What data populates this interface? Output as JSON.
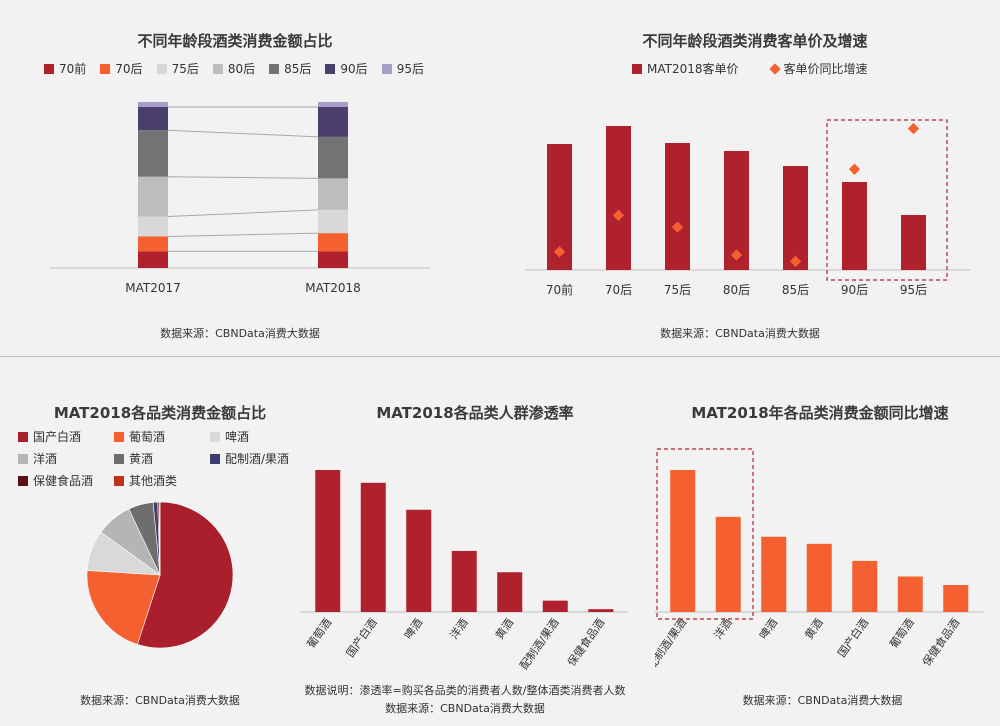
{
  "charts": {
    "c1": {
      "type": "stacked-bar",
      "title": "不同年龄段酒类消费金额占比",
      "categories": [
        "MAT2017",
        "MAT2018"
      ],
      "series": [
        {
          "name": "70前",
          "color": "#b0212e",
          "values": [
            10,
            10
          ]
        },
        {
          "name": "70后",
          "color": "#f4602f",
          "values": [
            9,
            11
          ]
        },
        {
          "name": "75后",
          "color": "#d8d8d8",
          "values": [
            12,
            14
          ]
        },
        {
          "name": "80后",
          "color": "#bdbdbd",
          "values": [
            24,
            19
          ]
        },
        {
          "name": "85后",
          "color": "#737373",
          "values": [
            28,
            25
          ]
        },
        {
          "name": "90后",
          "color": "#4b3f6b",
          "values": [
            14,
            18
          ]
        },
        {
          "name": "95后",
          "color": "#a89cc8",
          "values": [
            3,
            3
          ]
        }
      ],
      "source": "数据来源：CBNData消费大数据"
    },
    "c2": {
      "type": "bar+scatter",
      "title": "不同年龄段酒类消费客单价及增速",
      "categories": [
        "70前",
        "70后",
        "75后",
        "80后",
        "85后",
        "90后",
        "95后"
      ],
      "bar_series": {
        "name": "MAT2018客单价",
        "color": "#b0212e",
        "values": [
          126,
          144,
          127,
          119,
          104,
          88,
          55
        ]
      },
      "point_series": {
        "name": "客单价同比增速",
        "color": "#f4602f",
        "values": [
          17,
          51,
          40,
          14,
          8,
          94,
          132
        ]
      },
      "highlight": [
        "90后",
        "95后"
      ],
      "source": "数据来源：CBNData消费大数据"
    },
    "c3": {
      "type": "pie",
      "title": "MAT2018各品类消费金额占比",
      "slices": [
        {
          "name": "国产白酒",
          "color": "#a91f2c",
          "value": 55
        },
        {
          "name": "葡萄酒",
          "color": "#f4602f",
          "value": 21
        },
        {
          "name": "啤酒",
          "color": "#d9d9d9",
          "value": 9
        },
        {
          "name": "洋酒",
          "color": "#b5b5b5",
          "value": 8
        },
        {
          "name": "黄酒",
          "color": "#6e6e6e",
          "value": 5.5
        },
        {
          "name": "配制酒/果酒",
          "color": "#3f3c6e",
          "value": 1
        },
        {
          "name": "保健食品酒",
          "color": "#5a1014",
          "value": 0.3
        },
        {
          "name": "其他酒类",
          "color": "#c0301a",
          "value": 0.2
        }
      ],
      "source": "数据来源：CBNData消费大数据"
    },
    "c4": {
      "type": "bar",
      "title": "MAT2018各品类人群渗透率",
      "categories": [
        "葡萄酒",
        "国产白酒",
        "啤酒",
        "洋酒",
        "黄酒",
        "配制酒/果酒",
        "保健食品酒"
      ],
      "values": [
        100,
        91,
        72,
        43,
        28,
        8,
        2
      ],
      "color": "#b0212e",
      "note": "数据说明：渗透率=购买各品类的消费者人数/整体酒类消费者人数",
      "source": "数据来源：CBNData消费大数据"
    },
    "c5": {
      "type": "bar",
      "title": "MAT2018年各品类消费金额同比增速",
      "categories": [
        "配制酒/果酒",
        "洋酒",
        "啤酒",
        "黄酒",
        "国产白酒",
        "葡萄酒",
        "保健食品酒"
      ],
      "values": [
        100,
        67,
        53,
        48,
        36,
        25,
        19
      ],
      "color": "#f4602f",
      "highlight": [
        "配制酒/果酒",
        "洋酒"
      ],
      "source": "数据来源：CBNData消费大数据"
    }
  }
}
